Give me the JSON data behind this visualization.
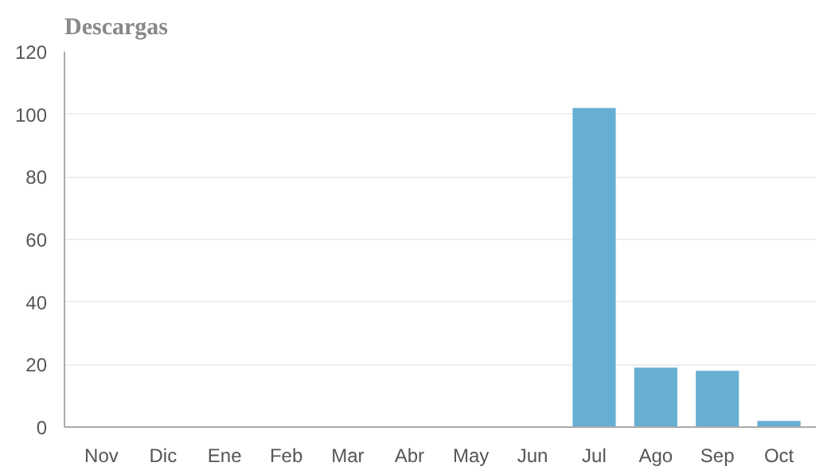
{
  "chart_data": {
    "type": "bar",
    "title": "Descargas",
    "categories": [
      "Nov",
      "Dic",
      "Ene",
      "Feb",
      "Mar",
      "Abr",
      "May",
      "Jun",
      "Jul",
      "Ago",
      "Sep",
      "Oct"
    ],
    "values": [
      0,
      0,
      0,
      0,
      0,
      0,
      0,
      0,
      102,
      19,
      18,
      2
    ],
    "color": "#66afd3",
    "ylim": [
      0,
      120
    ],
    "yticks": [
      0,
      20,
      40,
      60,
      80,
      100,
      120
    ],
    "grid": "y"
  }
}
